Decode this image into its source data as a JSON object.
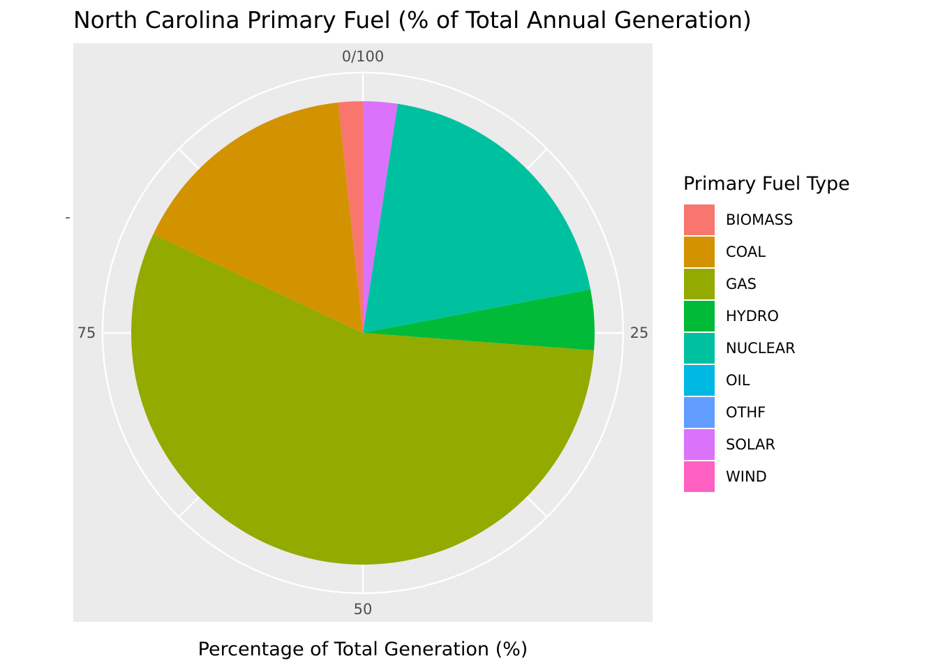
{
  "chart_data": {
    "type": "pie",
    "title": "North Carolina Primary Fuel (% of Total Annual Generation)",
    "xlabel": "Percentage of Total Generation (%)",
    "ylabel": "",
    "y_tick_label": "-",
    "tick_labels": [
      "0/100",
      "25",
      "50",
      "75"
    ],
    "tick_values": [
      0,
      25,
      50,
      75
    ],
    "legend_title": "Primary Fuel Type",
    "legend_position": "right",
    "direction": "clockwise-from-top",
    "categories": [
      "BIOMASS",
      "COAL",
      "GAS",
      "HYDRO",
      "NUCLEAR",
      "OIL",
      "OTHF",
      "SOLAR",
      "WIND"
    ],
    "values": [
      1.7,
      16.3,
      55.8,
      4.2,
      19.6,
      0.0,
      0.0,
      2.4,
      0.0
    ],
    "colors": [
      "#F8766D",
      "#D39200",
      "#93AA00",
      "#00BA38",
      "#00C19F",
      "#00B9E3",
      "#619CFF",
      "#DB72FB",
      "#FF61C3"
    ],
    "stack_order": [
      "SOLAR",
      "NUCLEAR",
      "HYDRO",
      "GAS",
      "COAL",
      "BIOMASS"
    ],
    "panel_background": "#EBEBEB",
    "grid": true,
    "grid_color": "#FFFFFF"
  }
}
